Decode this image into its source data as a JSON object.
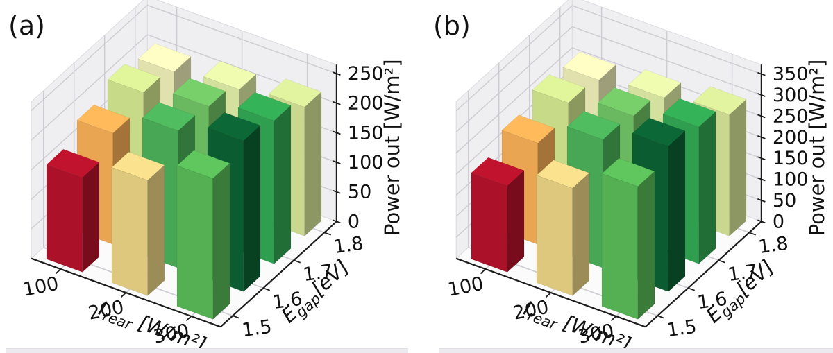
{
  "figure": {
    "background": "#ffffff",
    "bottom_strip_color": "#eceaee"
  },
  "style": {
    "wall_color": "#efeef1",
    "floor_color": "#fbfbfc",
    "grid_color": "#cfcdd3",
    "pane_edge_color": "#dddbe0",
    "spine_color": "#1c1c1c",
    "text_color": "#111111",
    "bar_top_shade": 1.13,
    "bar_side_shade": 0.7
  },
  "chart_data": [
    {
      "type": "bar3d",
      "panel_label": "(a)",
      "x_axis": {
        "label_main": "I",
        "label_sub": "rear",
        "label_unit": " [W/m²]",
        "ticks": [
          "100",
          "200",
          "300"
        ]
      },
      "y_axis": {
        "label_main": "E",
        "label_sub": "gap",
        "label_unit": "[eV]",
        "ticks": [
          "1.5",
          "1.6",
          "1.7",
          "1.8"
        ]
      },
      "z_axis": {
        "label": "Power out [W/m²]",
        "ticks": [
          0,
          50,
          100,
          150,
          200,
          250
        ],
        "max": 265
      },
      "series": [
        {
          "e_gap": "1.5",
          "values": [
            160,
            195,
            238
          ],
          "colors": [
            "#ab1128",
            "#ddc87e",
            "#54b052"
          ]
        },
        {
          "e_gap": "1.6",
          "values": [
            188,
            232,
            255
          ],
          "colors": [
            "#e9a551",
            "#47a755",
            "#0b5c30"
          ]
        },
        {
          "e_gap": "1.7",
          "values": [
            210,
            226,
            242
          ],
          "colors": [
            "#c7da88",
            "#6ab85f",
            "#2f9e4e"
          ]
        },
        {
          "e_gap": "1.8",
          "values": [
            198,
            208,
            218
          ],
          "colors": [
            "#e1e1ae",
            "#d4e09d",
            "#c9d88e"
          ]
        }
      ]
    },
    {
      "type": "bar3d",
      "panel_label": "(b)",
      "x_axis": {
        "label_main": "I",
        "label_sub": "rear",
        "label_unit": " [W/m²]",
        "ticks": [
          "100",
          "200",
          "300"
        ]
      },
      "y_axis": {
        "label_main": "E",
        "label_sub": "gap",
        "label_unit": "[eV]",
        "ticks": [
          "1.5",
          "1.6",
          "1.7",
          "1.8"
        ]
      },
      "z_axis": {
        "label": "Power out [W/m²]",
        "ticks": [
          0,
          50,
          100,
          150,
          200,
          250,
          300,
          350
        ],
        "max": 372
      },
      "series": [
        {
          "e_gap": "1.5",
          "values": [
            205,
            255,
            315
          ],
          "colors": [
            "#ab1128",
            "#ddc87e",
            "#54b052"
          ]
        },
        {
          "e_gap": "1.6",
          "values": [
            240,
            305,
            345
          ],
          "colors": [
            "#e9a551",
            "#47a755",
            "#0b5c30"
          ]
        },
        {
          "e_gap": "1.7",
          "values": [
            270,
            295,
            325
          ],
          "colors": [
            "#c7da88",
            "#6ab85f",
            "#2f9e4e"
          ]
        },
        {
          "e_gap": "1.8",
          "values": [
            258,
            272,
            288
          ],
          "colors": [
            "#e1e1ae",
            "#d4e09d",
            "#c9d88e"
          ]
        }
      ]
    }
  ]
}
